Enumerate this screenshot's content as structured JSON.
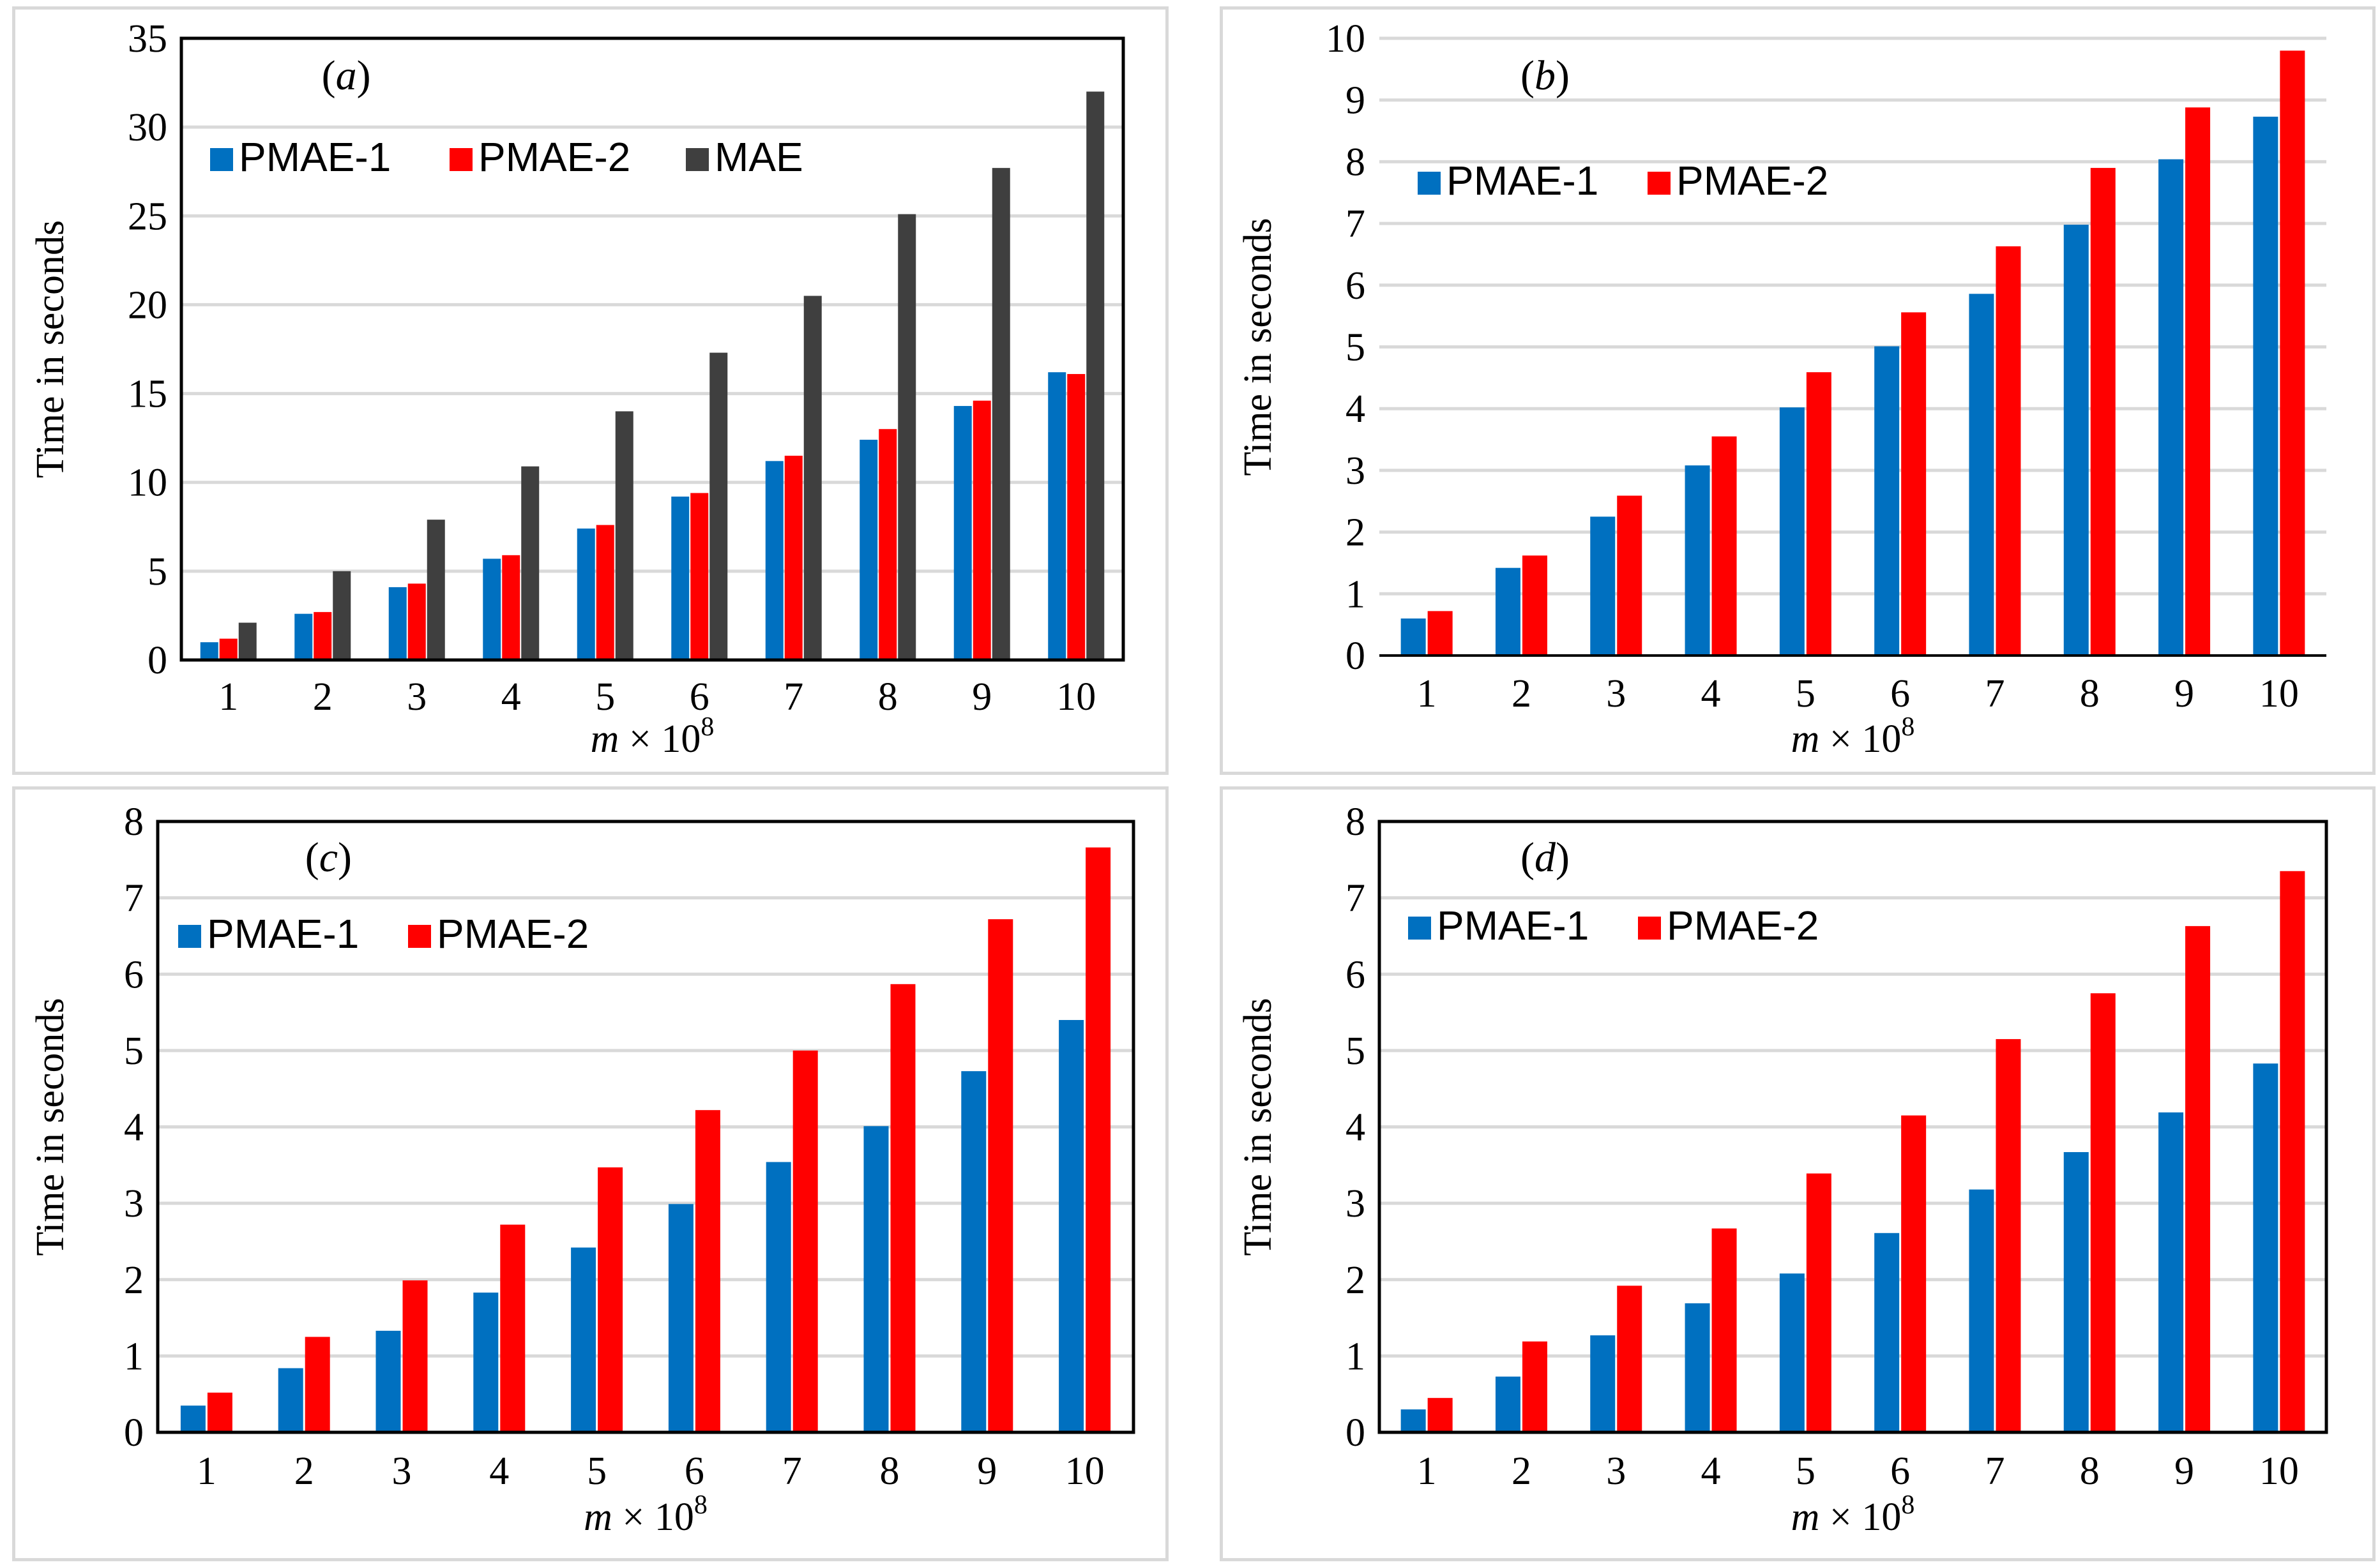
{
  "colors": {
    "PMAE-1": "#0070c0",
    "PMAE-2": "#ff0000",
    "MAE": "#3f3f3f",
    "grid": "#d9d9d9",
    "axis": "#000000"
  },
  "chart_data": [
    {
      "id": "a",
      "type": "bar",
      "panel_label": {
        "open": "(",
        "letter": "a",
        "close": ")"
      },
      "title": "(a)",
      "xlabel": "m × 10^8",
      "xlabel_parts": {
        "var": "m",
        "times": "×",
        "base": "10",
        "exp": "8"
      },
      "ylabel": "Time in seconds",
      "ylim": [
        0,
        35
      ],
      "yticks": [
        "0",
        "5",
        "10",
        "15",
        "20",
        "25",
        "30",
        "35"
      ],
      "categories": [
        "1",
        "2",
        "3",
        "4",
        "5",
        "6",
        "7",
        "8",
        "9",
        "10"
      ],
      "series": [
        {
          "name": "PMAE-1",
          "values": [
            1.0,
            2.6,
            4.1,
            5.7,
            7.4,
            9.2,
            11.2,
            12.4,
            14.3,
            16.2
          ]
        },
        {
          "name": "PMAE-2",
          "values": [
            1.2,
            2.7,
            4.3,
            5.9,
            7.6,
            9.4,
            11.5,
            13.0,
            14.6,
            16.1
          ]
        },
        {
          "name": "MAE",
          "values": [
            2.1,
            5.0,
            7.9,
            10.9,
            14.0,
            17.3,
            20.5,
            25.1,
            27.7,
            32.0
          ]
        }
      ],
      "legend": "top-left",
      "grid": true
    },
    {
      "id": "b",
      "type": "bar",
      "panel_label": {
        "open": "(",
        "letter": "b",
        "close": ")"
      },
      "title": "(b)",
      "xlabel": "m × 10^8",
      "xlabel_parts": {
        "var": "m",
        "times": "×",
        "base": "10",
        "exp": "8"
      },
      "ylabel": "Time in seconds",
      "ylim": [
        0,
        10
      ],
      "yticks": [
        "0",
        "1",
        "2",
        "3",
        "4",
        "5",
        "6",
        "7",
        "8",
        "9",
        "10"
      ],
      "categories": [
        "1",
        "2",
        "3",
        "4",
        "5",
        "6",
        "7",
        "8",
        "9",
        "10"
      ],
      "series": [
        {
          "name": "PMAE-1",
          "values": [
            0.6,
            1.42,
            2.25,
            3.08,
            4.02,
            5.01,
            5.86,
            6.98,
            8.04,
            8.73
          ]
        },
        {
          "name": "PMAE-2",
          "values": [
            0.72,
            1.62,
            2.59,
            3.55,
            4.59,
            5.56,
            6.63,
            7.9,
            8.88,
            9.8
          ]
        }
      ],
      "legend": "top-left",
      "grid": true
    },
    {
      "id": "c",
      "type": "bar",
      "panel_label": {
        "open": "(",
        "letter": "c",
        "close": ")"
      },
      "title": "(c)",
      "xlabel": "m × 10^8",
      "xlabel_parts": {
        "var": "m",
        "times": "×",
        "base": "10",
        "exp": "8"
      },
      "ylabel": "Time in seconds",
      "ylim": [
        0,
        8
      ],
      "yticks": [
        "0",
        "1",
        "2",
        "3",
        "4",
        "5",
        "6",
        "7",
        "8"
      ],
      "categories": [
        "1",
        "2",
        "3",
        "4",
        "5",
        "6",
        "7",
        "8",
        "9",
        "10"
      ],
      "series": [
        {
          "name": "PMAE-1",
          "values": [
            0.35,
            0.84,
            1.33,
            1.83,
            2.42,
            2.99,
            3.54,
            4.01,
            4.73,
            5.4
          ]
        },
        {
          "name": "PMAE-2",
          "values": [
            0.52,
            1.25,
            1.99,
            2.72,
            3.47,
            4.22,
            5.0,
            5.87,
            6.72,
            7.66
          ]
        }
      ],
      "legend": "top-left",
      "grid": true
    },
    {
      "id": "d",
      "type": "bar",
      "panel_label": {
        "open": "(",
        "letter": "d",
        "close": ")"
      },
      "title": "(d)",
      "xlabel": "m × 10^8",
      "xlabel_parts": {
        "var": "m",
        "times": "×",
        "base": "10",
        "exp": "8"
      },
      "ylabel": "Time in seconds",
      "ylim": [
        0,
        8
      ],
      "yticks": [
        "0",
        "1",
        "2",
        "3",
        "4",
        "5",
        "6",
        "7",
        "8"
      ],
      "categories": [
        "1",
        "2",
        "3",
        "4",
        "5",
        "6",
        "7",
        "8",
        "9",
        "10"
      ],
      "series": [
        {
          "name": "PMAE-1",
          "values": [
            0.3,
            0.73,
            1.27,
            1.69,
            2.08,
            2.61,
            3.18,
            3.67,
            4.19,
            4.83
          ]
        },
        {
          "name": "PMAE-2",
          "values": [
            0.45,
            1.19,
            1.92,
            2.67,
            3.39,
            4.15,
            5.15,
            5.75,
            6.63,
            7.35
          ]
        }
      ],
      "legend": "top-left",
      "grid": true
    }
  ]
}
